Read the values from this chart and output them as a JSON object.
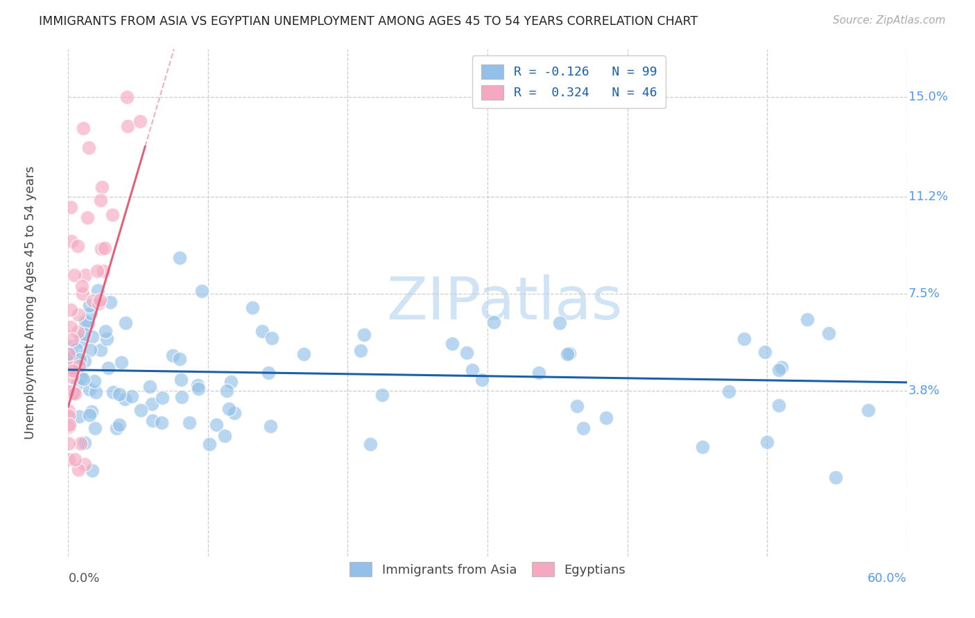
{
  "title": "IMMIGRANTS FROM ASIA VS EGYPTIAN UNEMPLOYMENT AMONG AGES 45 TO 54 YEARS CORRELATION CHART",
  "source": "Source: ZipAtlas.com",
  "ylabel": "Unemployment Among Ages 45 to 54 years",
  "ytick_labels": [
    "3.8%",
    "7.5%",
    "11.2%",
    "15.0%"
  ],
  "ytick_values": [
    0.038,
    0.075,
    0.112,
    0.15
  ],
  "xlim": [
    0.0,
    0.6
  ],
  "ylim": [
    -0.025,
    0.168
  ],
  "legend1_label": "R = -0.126   N = 99",
  "legend2_label": "R =  0.324   N = 46",
  "legend_asia_label": "Immigrants from Asia",
  "legend_egypt_label": "Egyptians",
  "color_asia": "#92c0e8",
  "color_egypt": "#f5a8c0",
  "color_asia_line": "#1a5fa8",
  "color_egypt_line": "#e0607a",
  "watermark_color": "#d0e4f5",
  "background_color": "#ffffff",
  "grid_color": "#cccccc"
}
